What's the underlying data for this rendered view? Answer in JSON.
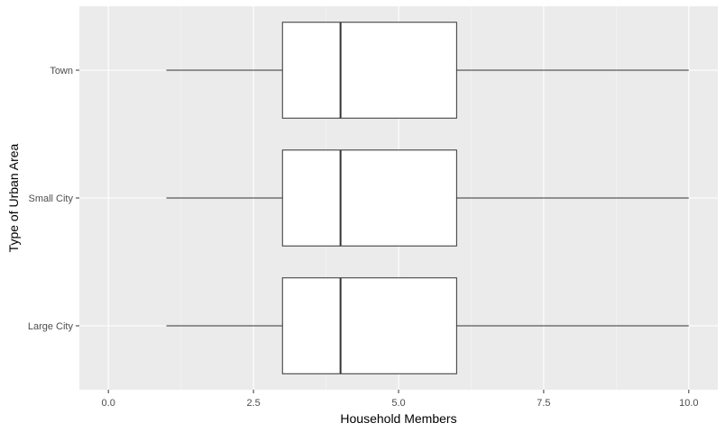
{
  "chart_data": {
    "type": "boxplot",
    "orientation": "horizontal",
    "title": "",
    "xlabel": "Household Members",
    "ylabel": "Type of Urban Area",
    "xlim": [
      -0.5,
      10.5
    ],
    "x_ticks": [
      0.0,
      2.5,
      5.0,
      7.5,
      10.0
    ],
    "x_tick_labels": [
      "0.0",
      "2.5",
      "5.0",
      "7.5",
      "10.0"
    ],
    "categories": [
      "Large City",
      "Small City",
      "Town"
    ],
    "boxes": [
      {
        "category": "Large City",
        "min": 1,
        "q1": 3,
        "median": 4,
        "q3": 6,
        "max": 10
      },
      {
        "category": "Small City",
        "min": 1,
        "q1": 3,
        "median": 4,
        "q3": 6,
        "max": 10
      },
      {
        "category": "Town",
        "min": 1,
        "q1": 3,
        "median": 4,
        "q3": 6,
        "max": 10
      }
    ],
    "grid": true,
    "colors": {
      "panel": "#ebebeb",
      "grid_major": "#ffffff",
      "box_fill": "#ffffff",
      "box_stroke": "#333333"
    }
  }
}
